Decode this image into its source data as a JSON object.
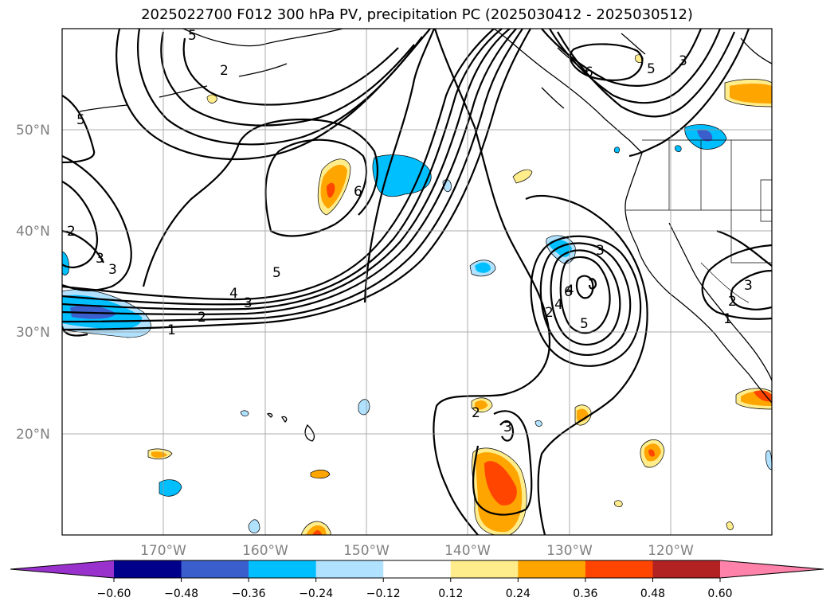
{
  "title": "2025022700 F012 300 hPa PV, precipitation PC (2025030412 - 2025030512)",
  "map": {
    "lon_range": [
      -180,
      -110
    ],
    "lat_range": [
      10,
      60
    ],
    "lat_ticks": [
      {
        "value": 50,
        "label": "50°N"
      },
      {
        "value": 40,
        "label": "40°N"
      },
      {
        "value": 30,
        "label": "30°N"
      },
      {
        "value": 20,
        "label": "20°N"
      }
    ],
    "lon_ticks": [
      {
        "value": -170,
        "label": "170°W"
      },
      {
        "value": -160,
        "label": "160°W"
      },
      {
        "value": -150,
        "label": "150°W"
      },
      {
        "value": -140,
        "label": "140°W"
      },
      {
        "value": -130,
        "label": "130°W"
      },
      {
        "value": -120,
        "label": "120°W"
      }
    ],
    "grid": true,
    "contour_labels": [
      "5",
      "2",
      "3",
      "6",
      "5",
      "2",
      "3",
      "4",
      "5",
      "6",
      "1",
      "2",
      "3",
      "4",
      "5",
      "3",
      "2",
      "3",
      "4",
      "5",
      "6",
      "3",
      "2",
      "1",
      "3",
      "2"
    ]
  },
  "colorbar": {
    "ticks": [
      "−0.60",
      "−0.48",
      "−0.36",
      "−0.24",
      "−0.12",
      "0.12",
      "0.24",
      "0.36",
      "0.48",
      "0.60"
    ],
    "colors": [
      "#9932cc",
      "#00008b",
      "#3a5fcd",
      "#00bfff",
      "#b0e2ff",
      "#ffffff",
      "#ffec8b",
      "#ffa500",
      "#ff4500",
      "#b22222",
      "#ff82ab"
    ],
    "extend": "both"
  }
}
